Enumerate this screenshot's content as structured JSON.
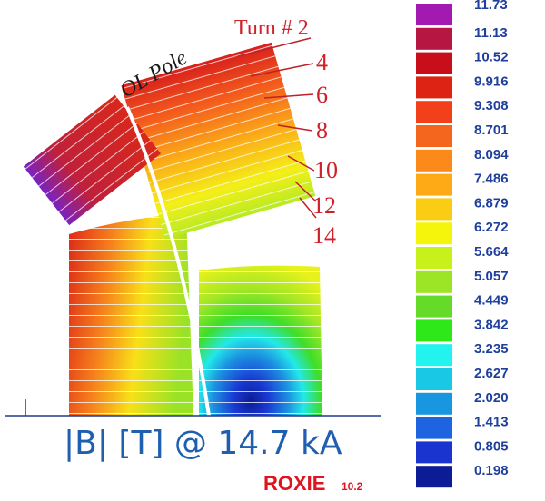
{
  "figure": {
    "pole_label": "OL Pole",
    "turn_labels": [
      "Turn # 2",
      "4",
      "6",
      "8",
      "10",
      "12",
      "14"
    ],
    "title": "|B| [T] @ 14.7 kA",
    "brand": "ROXIE",
    "brand_version": "10.2"
  },
  "legend": {
    "values": [
      "11.73",
      "11.13",
      "10.52",
      "9.916",
      "9.308",
      "8.701",
      "8.094",
      "7.486",
      "6.879",
      "6.272",
      "5.664",
      "5.057",
      "4.449",
      "3.842",
      "3.235",
      "2.627",
      "2.020",
      "1.413",
      "0.805",
      "0.198"
    ],
    "colors": [
      "#a21ab0",
      "#b51642",
      "#c80e1a",
      "#dd2414",
      "#f2401a",
      "#f4651e",
      "#fb8a1a",
      "#fdaa16",
      "#fbcc14",
      "#f5f50c",
      "#c8f01a",
      "#9ce426",
      "#66da28",
      "#2ee81a",
      "#22f3ee",
      "#18c8e4",
      "#1896e0",
      "#1e64e0",
      "#1a34d0",
      "#0c1c96"
    ]
  }
}
